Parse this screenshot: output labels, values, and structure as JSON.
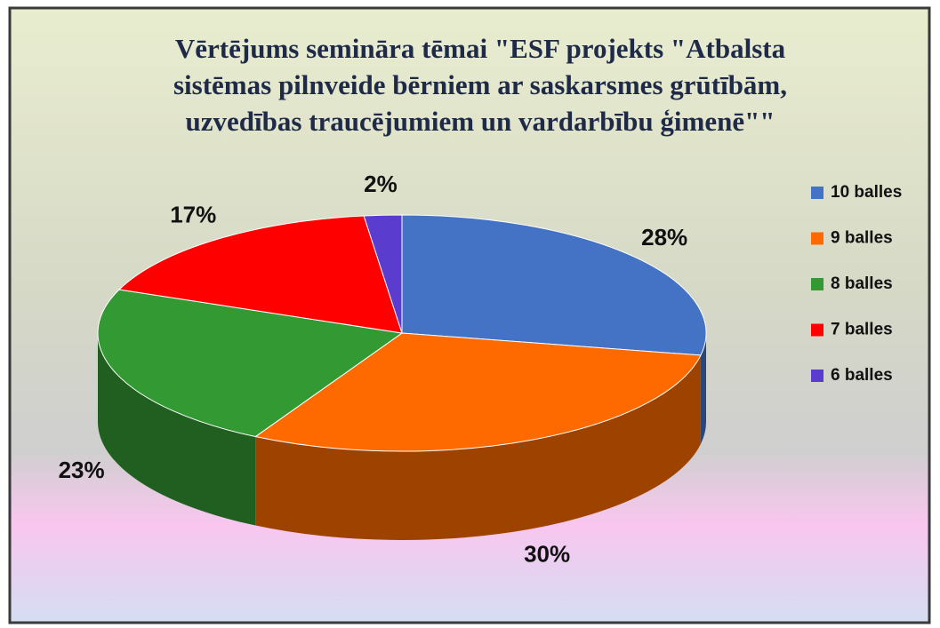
{
  "chart_data": {
    "type": "pie",
    "title": [
      "Vērtējums  semināra tēmai \"ESF projekts \"Atbalsta",
      "sistēmas pilnveide bērniem ar saskarsmes grūtībām,",
      "uzvedības traucējumiem  un vardarbību ģimenē\"\""
    ],
    "categories": [
      "10 balles",
      "9 balles",
      "8 balles",
      "7 balles",
      "6 balles"
    ],
    "values": [
      28,
      30,
      23,
      17,
      2
    ],
    "value_labels": [
      "28%",
      "30%",
      "23%",
      "17%",
      "2%"
    ],
    "colors": [
      "#4472c4",
      "#ff6a00",
      "#339933",
      "#ff0000",
      "#5a3ccf"
    ],
    "legend": "right"
  }
}
